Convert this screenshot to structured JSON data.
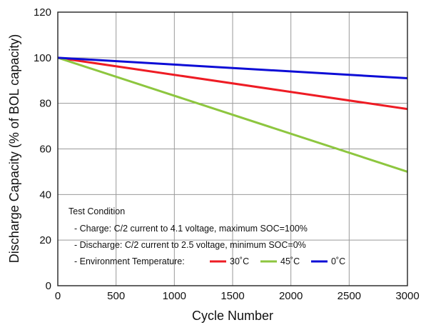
{
  "chart_data": {
    "type": "line",
    "title": "",
    "xlabel": "Cycle Number",
    "ylabel": "Discharge Capacity (% of BOL capacity)",
    "xlim": [
      0,
      3000
    ],
    "ylim": [
      0,
      120
    ],
    "xticks": [
      0,
      500,
      1000,
      1500,
      2000,
      2500,
      3000
    ],
    "yticks": [
      0,
      20,
      40,
      60,
      80,
      100,
      120
    ],
    "grid": true,
    "legend": "bottom-center",
    "series": [
      {
        "name": "30˚C",
        "color": "#ee1c24",
        "x": [
          0,
          3000
        ],
        "y": [
          100,
          77.5
        ]
      },
      {
        "name": "45˚C",
        "color": "#8dc63f",
        "x": [
          0,
          3000
        ],
        "y": [
          100,
          50
        ]
      },
      {
        "name": "0˚C",
        "color": "#0d0dd6",
        "x": [
          0,
          3000
        ],
        "y": [
          100,
          91
        ]
      }
    ],
    "annotation": {
      "heading": "Test Condition",
      "lines": [
        "- Charge: C/2 current to 4.1 voltage, maximum SOC=100%",
        "- Discharge: C/2 current to 2.5 voltage, minimum SOC=0%",
        "- Environment Temperature:"
      ]
    }
  }
}
